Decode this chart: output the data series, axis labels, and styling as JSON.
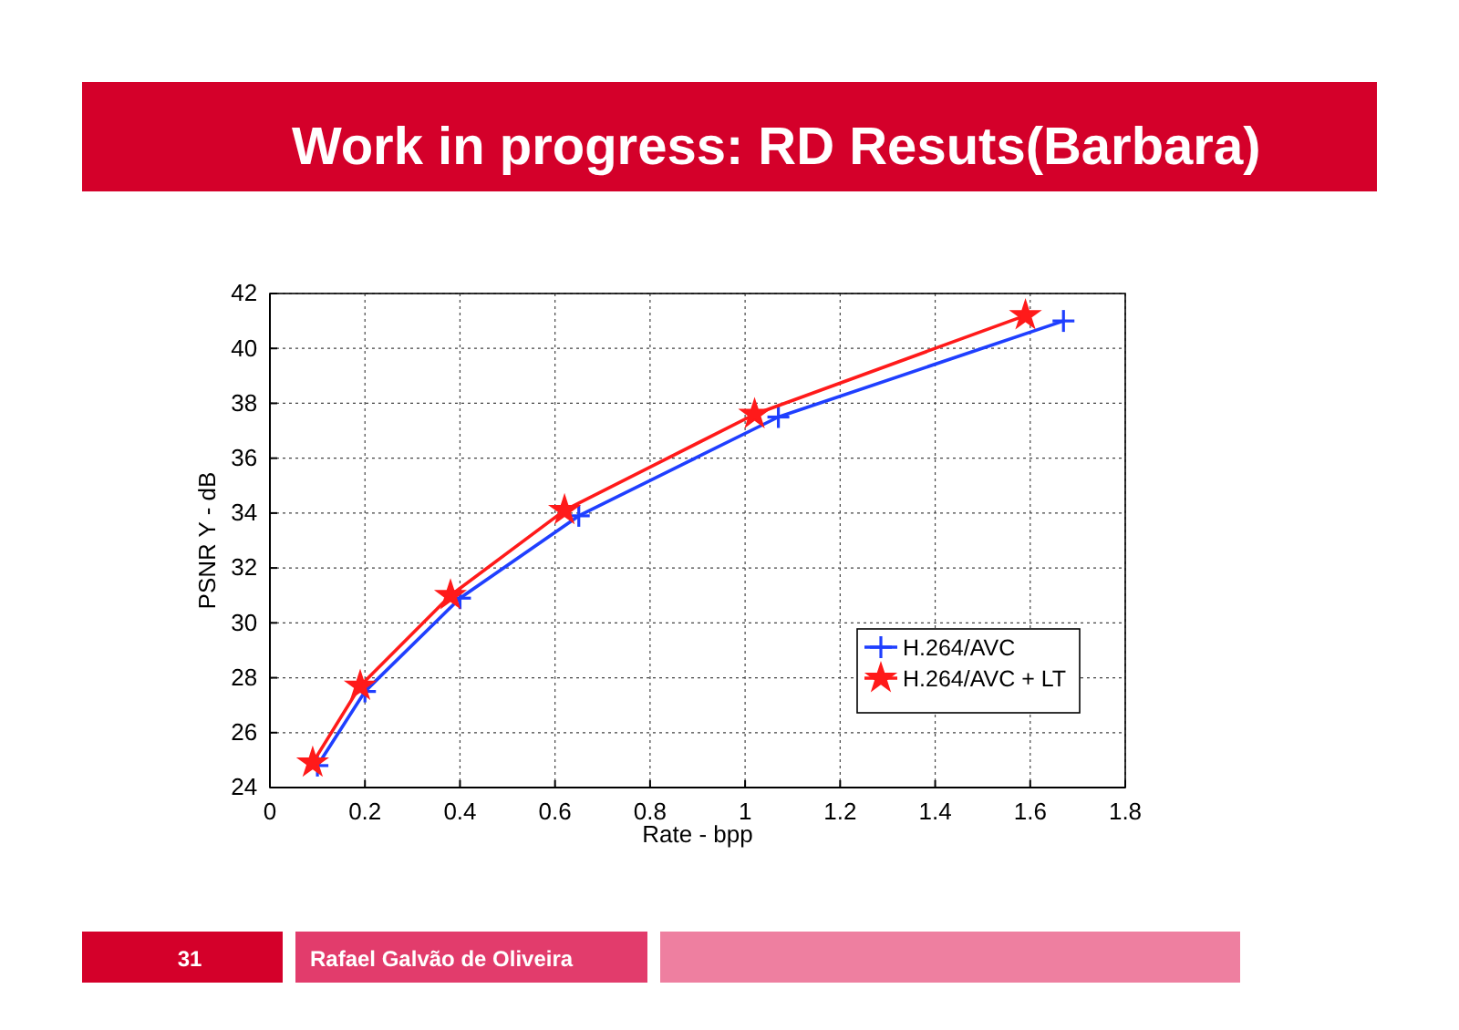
{
  "chart_data": {
    "type": "line",
    "title": "Work in progress: RD Resuts(Barbara)",
    "xlabel": "Rate - bpp",
    "ylabel": "PSNR Y - dB",
    "xlim": [
      0,
      1.8
    ],
    "xticks": [
      0,
      0.2,
      0.4,
      0.6,
      0.8,
      1,
      1.2,
      1.4,
      1.6,
      1.8
    ],
    "ylim": [
      24,
      42
    ],
    "yticks": [
      24,
      26,
      28,
      30,
      32,
      34,
      36,
      38,
      40,
      42
    ],
    "grid": true,
    "legend": "bottom right",
    "line_style": "solid",
    "series": [
      {
        "name": "H.264/AVC",
        "color": "#1f3fff",
        "marker": "cross",
        "x": [
          0.1,
          0.2,
          0.4,
          0.65,
          1.07,
          1.67
        ],
        "values": [
          24.8,
          27.5,
          30.9,
          33.9,
          37.5,
          41.0
        ]
      },
      {
        "name": "H.264/AVC + LT",
        "color": "#ff1a1a",
        "marker": "star",
        "x": [
          0.09,
          0.19,
          0.38,
          0.62,
          1.02,
          1.59
        ],
        "values": [
          24.9,
          27.7,
          31.0,
          34.1,
          37.6,
          41.2
        ]
      }
    ],
    "annotations": [
      "31",
      "Rafael Galvão de Oliveira"
    ]
  }
}
